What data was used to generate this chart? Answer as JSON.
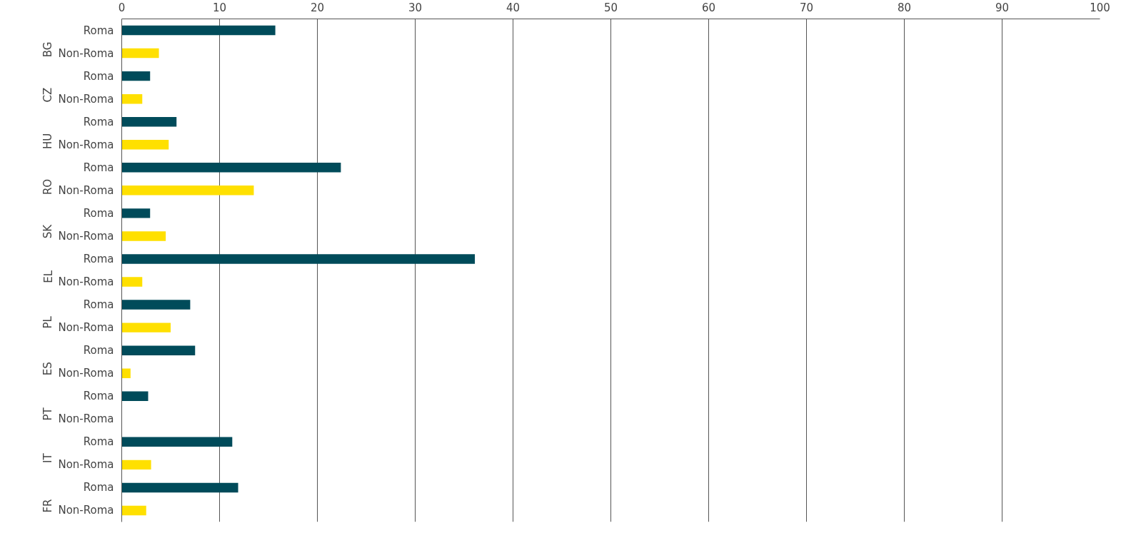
{
  "chart_data": {
    "type": "bar",
    "orientation": "horizontal",
    "categories": [
      "BG",
      "CZ",
      "HU",
      "RO",
      "SK",
      "EL",
      "PL",
      "ES",
      "PT",
      "IT",
      "FR"
    ],
    "series": [
      {
        "name": "Roma",
        "color": "#004b5a",
        "values": [
          15.7,
          2.9,
          5.6,
          22.4,
          2.9,
          36.1,
          7.0,
          7.5,
          2.7,
          11.3,
          11.9
        ]
      },
      {
        "name": "Non-Roma",
        "color": "#ffe000",
        "values": [
          3.8,
          2.1,
          4.8,
          13.5,
          4.5,
          2.1,
          5.0,
          0.9,
          null,
          3.0,
          2.5
        ]
      }
    ],
    "xlim": [
      0,
      100
    ],
    "xticks": [
      0,
      10,
      20,
      30,
      40,
      50,
      60,
      70,
      80,
      90,
      100
    ],
    "grid": "x"
  }
}
